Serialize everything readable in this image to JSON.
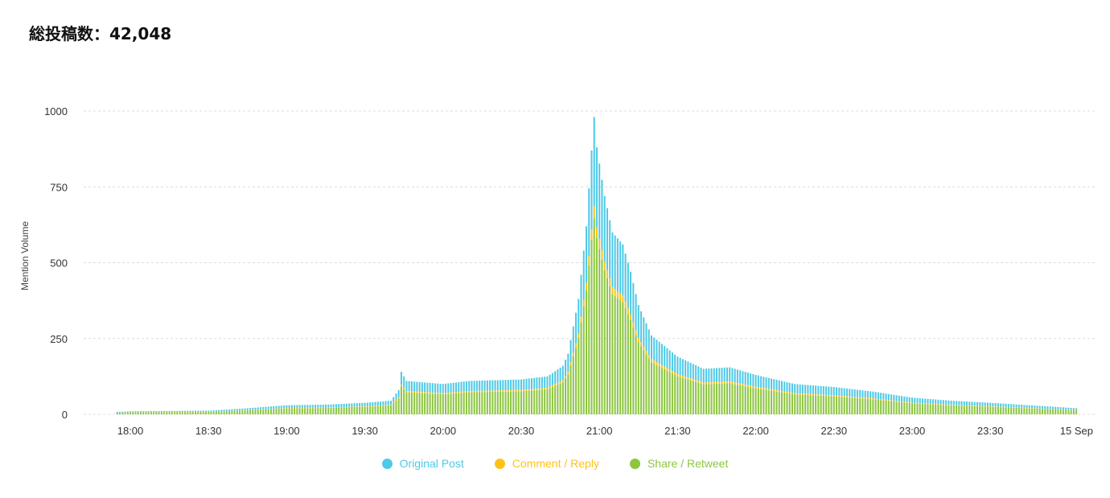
{
  "header": {
    "total_label": "総投稿数：42,048"
  },
  "colors": {
    "original": "#4ec9e6",
    "comment": "#ffc21a",
    "share": "#8cc63f"
  },
  "chart_data": {
    "type": "bar",
    "stacked": true,
    "ylabel": "Mention Volume",
    "ylim": [
      0,
      1000
    ],
    "yticks": [
      "0",
      "250",
      "500",
      "750",
      "1000"
    ],
    "xticks": [
      "18:00",
      "18:30",
      "19:00",
      "19:30",
      "20:00",
      "20:30",
      "21:00",
      "21:30",
      "22:00",
      "22:30",
      "23:00",
      "23:30",
      "15 Sep"
    ],
    "grid": true,
    "legend_position": "bottom",
    "time_start": "17:55",
    "time_end": "00:03",
    "interval_minutes": 1,
    "total_anchors": [
      [
        "17:55",
        8
      ],
      [
        "18:00",
        10
      ],
      [
        "18:30",
        12
      ],
      [
        "18:45",
        20
      ],
      [
        "19:00",
        30
      ],
      [
        "19:15",
        32
      ],
      [
        "19:30",
        38
      ],
      [
        "19:40",
        45
      ],
      [
        "19:43",
        80
      ],
      [
        "19:44",
        140
      ],
      [
        "19:46",
        110
      ],
      [
        "20:00",
        100
      ],
      [
        "20:10",
        110
      ],
      [
        "20:30",
        115
      ],
      [
        "20:40",
        125
      ],
      [
        "20:46",
        160
      ],
      [
        "20:48",
        200
      ],
      [
        "20:52",
        380
      ],
      [
        "20:55",
        620
      ],
      [
        "20:57",
        870
      ],
      [
        "20:58",
        980
      ],
      [
        "20:59",
        880
      ],
      [
        "21:02",
        720
      ],
      [
        "21:05",
        600
      ],
      [
        "21:09",
        560
      ],
      [
        "21:12",
        470
      ],
      [
        "21:15",
        360
      ],
      [
        "21:20",
        260
      ],
      [
        "21:30",
        190
      ],
      [
        "21:40",
        150
      ],
      [
        "21:50",
        155
      ],
      [
        "22:00",
        130
      ],
      [
        "22:15",
        100
      ],
      [
        "22:30",
        90
      ],
      [
        "22:45",
        75
      ],
      [
        "23:00",
        55
      ],
      [
        "23:15",
        45
      ],
      [
        "23:30",
        38
      ],
      [
        "23:45",
        30
      ],
      [
        "00:03",
        20
      ]
    ],
    "series": [
      {
        "name": "Original Post",
        "share_of_total": 0.3
      },
      {
        "name": "Comment / Reply",
        "share_of_total": 0.04
      },
      {
        "name": "Share / Retweet",
        "share_of_total": 0.66
      }
    ]
  }
}
